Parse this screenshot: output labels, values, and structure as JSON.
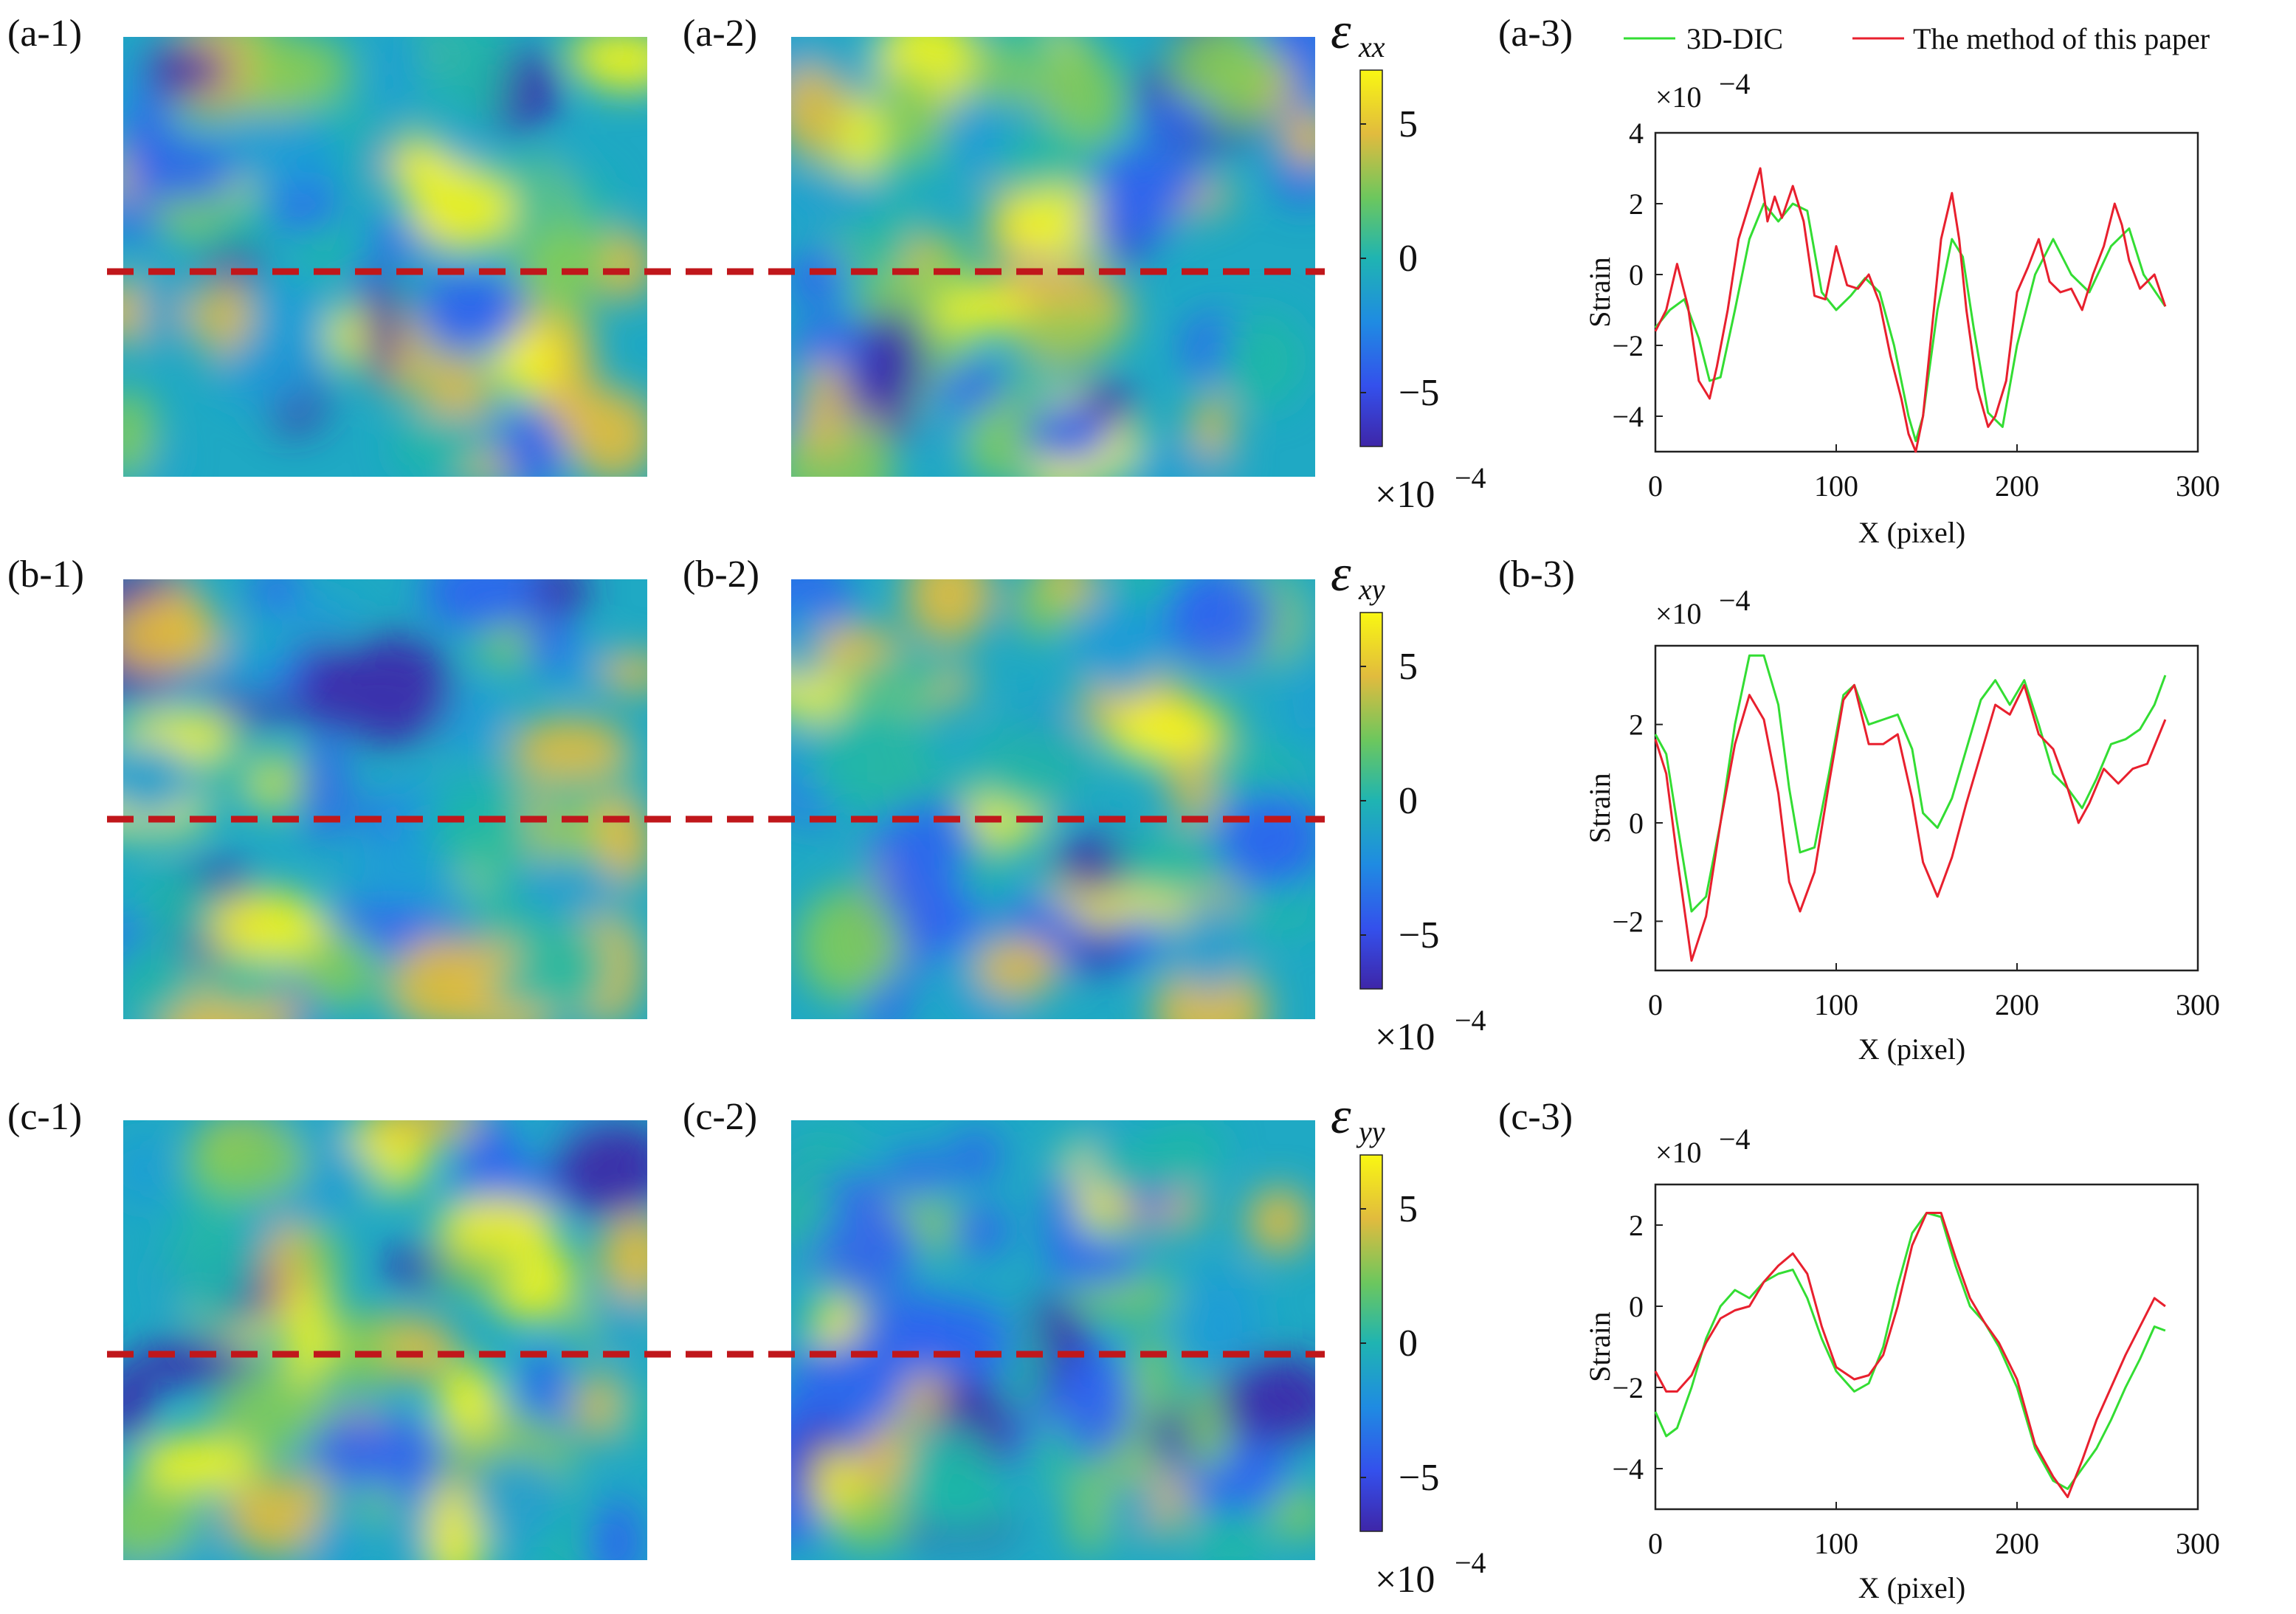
{
  "figure": {
    "legend": [
      "3D-DIC",
      "The method of this paper"
    ]
  },
  "colors": {
    "dic": "#33dd33",
    "method": "#e8202e",
    "cut_line": "#c0171b",
    "colormap": [
      "#3e26a8",
      "#2e63f1",
      "#1e9cd7",
      "#1fb8a6",
      "#81cc59",
      "#e6bd3a",
      "#f9f712"
    ]
  },
  "rows": [
    {
      "panel_labels": [
        "(a-1)",
        "(a-2)",
        "(a-3)"
      ],
      "colorbar": {
        "symbol": "ε",
        "subscript": "xx",
        "ticks": [
          "5",
          "0",
          "−5"
        ],
        "range": [
          -7,
          7
        ],
        "scale_label": "×10",
        "scale_exp": "−4"
      },
      "plot": {
        "scale_label": "×10",
        "scale_exp": "−4",
        "ylabel": "Strain",
        "xlabel": "X (pixel)",
        "xticks": [
          "0",
          "100",
          "200",
          "300"
        ],
        "yticks": [
          "4",
          "2",
          "0",
          "−2",
          "−4"
        ]
      }
    },
    {
      "panel_labels": [
        "(b-1)",
        "(b-2)",
        "(b-3)"
      ],
      "colorbar": {
        "symbol": "ε",
        "subscript": "xy",
        "ticks": [
          "5",
          "0",
          "−5"
        ],
        "range": [
          -7,
          7
        ],
        "scale_label": "×10",
        "scale_exp": "−4"
      },
      "plot": {
        "scale_label": "×10",
        "scale_exp": "−4",
        "ylabel": "Strain",
        "xlabel": "X (pixel)",
        "xticks": [
          "0",
          "100",
          "200",
          "300"
        ],
        "yticks": [
          "2",
          "0",
          "−2"
        ]
      }
    },
    {
      "panel_labels": [
        "(c-1)",
        "(c-2)",
        "(c-3)"
      ],
      "colorbar": {
        "symbol": "ε",
        "subscript": "yy",
        "ticks": [
          "5",
          "0",
          "−5"
        ],
        "range": [
          -7,
          7
        ],
        "scale_label": "×10",
        "scale_exp": "−4"
      },
      "plot": {
        "scale_label": "×10",
        "scale_exp": "−4",
        "ylabel": "Strain",
        "xlabel": "X (pixel)",
        "xticks": [
          "0",
          "100",
          "200",
          "300"
        ],
        "yticks": [
          "2",
          "0",
          "−2",
          "−4"
        ]
      }
    }
  ],
  "chart_data": [
    {
      "type": "line",
      "panel": "(a-3)",
      "xlabel": "X (pixel)",
      "ylabel": "Strain",
      "xlim": [
        0,
        300
      ],
      "ylim": [
        -5,
        4
      ],
      "y_multiplier": "×10^-4",
      "legend": [
        "3D-DIC",
        "The method of this paper"
      ],
      "series": [
        {
          "name": "3D-DIC",
          "x": [
            0,
            8,
            16,
            24,
            30,
            36,
            44,
            52,
            60,
            68,
            76,
            84,
            92,
            100,
            108,
            116,
            124,
            132,
            140,
            144,
            148,
            156,
            164,
            170,
            176,
            184,
            192,
            200,
            210,
            220,
            230,
            240,
            252,
            262,
            270,
            282
          ],
          "y": [
            -1.5,
            -1.0,
            -0.7,
            -1.8,
            -3.0,
            -2.9,
            -1.0,
            1.0,
            2.0,
            1.5,
            2.0,
            1.8,
            -0.5,
            -1.0,
            -0.6,
            -0.1,
            -0.5,
            -2.0,
            -4.0,
            -4.7,
            -4.0,
            -1.0,
            1.0,
            0.5,
            -1.5,
            -3.9,
            -4.3,
            -2.0,
            0.0,
            1.0,
            0.0,
            -0.5,
            0.8,
            1.3,
            0.0,
            -0.9
          ]
        },
        {
          "name": "The method of this paper",
          "x": [
            0,
            6,
            12,
            18,
            24,
            30,
            34,
            40,
            46,
            52,
            58,
            62,
            66,
            70,
            76,
            82,
            88,
            94,
            100,
            106,
            112,
            118,
            124,
            130,
            136,
            140,
            144,
            148,
            152,
            158,
            164,
            168,
            172,
            178,
            184,
            188,
            194,
            200,
            206,
            212,
            218,
            224,
            230,
            236,
            242,
            248,
            254,
            258,
            262,
            268,
            276,
            282
          ],
          "y": [
            -1.6,
            -1.0,
            0.3,
            -0.9,
            -3.0,
            -3.5,
            -2.6,
            -1.0,
            1.0,
            2.0,
            3.0,
            1.5,
            2.2,
            1.6,
            2.5,
            1.5,
            -0.6,
            -0.7,
            0.8,
            -0.3,
            -0.4,
            0.0,
            -0.8,
            -2.3,
            -3.5,
            -4.5,
            -5.0,
            -4.0,
            -2.0,
            1.0,
            2.3,
            1.0,
            -1.0,
            -3.2,
            -4.3,
            -4.0,
            -3.0,
            -0.5,
            0.2,
            1.0,
            -0.2,
            -0.5,
            -0.4,
            -1.0,
            0.0,
            0.8,
            2.0,
            1.4,
            0.4,
            -0.4,
            0.0,
            -0.9
          ]
        }
      ]
    },
    {
      "type": "line",
      "panel": "(b-3)",
      "xlabel": "X (pixel)",
      "ylabel": "Strain",
      "xlim": [
        0,
        300
      ],
      "ylim": [
        -3,
        3.6
      ],
      "y_multiplier": "×10^-4",
      "legend": [
        "3D-DIC",
        "The method of this paper"
      ],
      "series": [
        {
          "name": "3D-DIC",
          "x": [
            0,
            6,
            12,
            20,
            28,
            36,
            44,
            52,
            60,
            68,
            74,
            80,
            88,
            96,
            104,
            110,
            118,
            126,
            134,
            142,
            148,
            156,
            164,
            172,
            180,
            188,
            196,
            204,
            212,
            220,
            228,
            236,
            244,
            252,
            260,
            268,
            276,
            282
          ],
          "y": [
            1.8,
            1.4,
            0.0,
            -1.8,
            -1.5,
            0.0,
            2.0,
            3.4,
            3.4,
            2.4,
            0.7,
            -0.6,
            -0.5,
            1.0,
            2.6,
            2.8,
            2.0,
            2.1,
            2.2,
            1.5,
            0.2,
            -0.1,
            0.5,
            1.5,
            2.5,
            2.9,
            2.4,
            2.9,
            2.0,
            1.0,
            0.7,
            0.3,
            0.9,
            1.6,
            1.7,
            1.9,
            2.4,
            3.0
          ]
        },
        {
          "name": "The method of this paper",
          "x": [
            0,
            6,
            12,
            20,
            28,
            36,
            44,
            52,
            60,
            68,
            74,
            80,
            88,
            96,
            104,
            110,
            118,
            126,
            134,
            142,
            148,
            156,
            164,
            172,
            180,
            188,
            196,
            204,
            212,
            220,
            228,
            234,
            240,
            248,
            256,
            264,
            272,
            282
          ],
          "y": [
            1.7,
            1.0,
            -0.7,
            -2.8,
            -1.9,
            0.0,
            1.6,
            2.6,
            2.1,
            0.6,
            -1.2,
            -1.8,
            -1.0,
            0.8,
            2.5,
            2.8,
            1.6,
            1.6,
            1.8,
            0.5,
            -0.8,
            -1.5,
            -0.7,
            0.4,
            1.4,
            2.4,
            2.2,
            2.8,
            1.8,
            1.5,
            0.7,
            0.0,
            0.4,
            1.1,
            0.8,
            1.1,
            1.2,
            2.1
          ]
        }
      ]
    },
    {
      "type": "line",
      "panel": "(c-3)",
      "xlabel": "X (pixel)",
      "ylabel": "Strain",
      "xlim": [
        0,
        300
      ],
      "ylim": [
        -5,
        3
      ],
      "y_multiplier": "×10^-4",
      "legend": [
        "3D-DIC",
        "The method of this paper"
      ],
      "series": [
        {
          "name": "3D-DIC",
          "x": [
            0,
            6,
            12,
            20,
            28,
            36,
            44,
            52,
            60,
            68,
            76,
            84,
            92,
            100,
            110,
            118,
            126,
            134,
            142,
            150,
            158,
            166,
            174,
            182,
            190,
            200,
            210,
            220,
            228,
            236,
            244,
            252,
            260,
            268,
            276,
            282
          ],
          "y": [
            -2.6,
            -3.2,
            -3.0,
            -2.0,
            -0.8,
            0.0,
            0.4,
            0.2,
            0.6,
            0.8,
            0.9,
            0.2,
            -0.8,
            -1.6,
            -2.1,
            -1.9,
            -1.0,
            0.5,
            1.8,
            2.3,
            2.2,
            1.0,
            0.0,
            -0.4,
            -1.0,
            -2.0,
            -3.5,
            -4.3,
            -4.5,
            -4.0,
            -3.5,
            -2.8,
            -2.0,
            -1.3,
            -0.5,
            -0.6
          ]
        },
        {
          "name": "The method of this paper",
          "x": [
            0,
            6,
            12,
            20,
            28,
            36,
            44,
            52,
            60,
            68,
            76,
            84,
            92,
            100,
            110,
            118,
            126,
            134,
            142,
            150,
            158,
            166,
            174,
            182,
            190,
            200,
            210,
            220,
            228,
            236,
            244,
            252,
            260,
            268,
            276,
            282
          ],
          "y": [
            -1.6,
            -2.1,
            -2.1,
            -1.7,
            -0.9,
            -0.3,
            -0.1,
            0.0,
            0.6,
            1.0,
            1.3,
            0.8,
            -0.5,
            -1.5,
            -1.8,
            -1.7,
            -1.2,
            0.0,
            1.5,
            2.3,
            2.3,
            1.2,
            0.2,
            -0.4,
            -0.9,
            -1.8,
            -3.4,
            -4.2,
            -4.7,
            -3.8,
            -2.8,
            -2.0,
            -1.2,
            -0.5,
            0.2,
            0.0
          ]
        }
      ]
    }
  ]
}
